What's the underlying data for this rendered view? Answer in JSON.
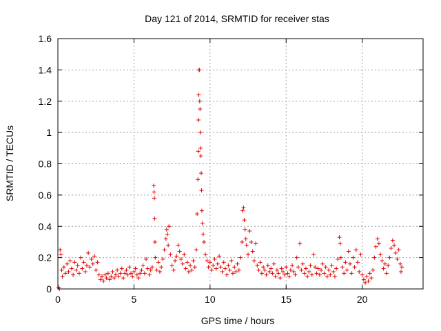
{
  "chart_data": {
    "type": "scatter",
    "title": "Day 121 of 2014, SRMTID for receiver stas",
    "xlabel": "GPS time / hours",
    "ylabel": "SRMTID / TECUs",
    "xlim": [
      0,
      24
    ],
    "ylim": [
      0,
      1.6
    ],
    "xticks": [
      0,
      5,
      10,
      15,
      20
    ],
    "xtick_labels": [
      "0",
      "5",
      "10",
      "15",
      "20"
    ],
    "yticks": [
      0,
      0.2,
      0.4,
      0.6,
      0.8,
      1.0,
      1.2,
      1.4,
      1.6
    ],
    "ytick_labels": [
      "0",
      "0.2",
      "0.4",
      "0.6",
      "0.8",
      "1",
      "1.2",
      "1.4",
      "1.6"
    ],
    "grid": true,
    "marker": "+",
    "color": "#e00000",
    "series": [
      {
        "name": "stas",
        "points": [
          [
            0.05,
            0.01
          ],
          [
            0.1,
            0.0
          ],
          [
            0.15,
            0.25
          ],
          [
            0.2,
            0.22
          ],
          [
            0.25,
            0.12
          ],
          [
            0.3,
            0.08
          ],
          [
            0.4,
            0.14
          ],
          [
            0.5,
            0.1
          ],
          [
            0.6,
            0.16
          ],
          [
            0.7,
            0.11
          ],
          [
            0.8,
            0.18
          ],
          [
            0.9,
            0.13
          ],
          [
            1.0,
            0.09
          ],
          [
            1.1,
            0.17
          ],
          [
            1.2,
            0.12
          ],
          [
            1.3,
            0.15
          ],
          [
            1.4,
            0.1
          ],
          [
            1.5,
            0.2
          ],
          [
            1.6,
            0.13
          ],
          [
            1.7,
            0.17
          ],
          [
            1.8,
            0.11
          ],
          [
            1.9,
            0.15
          ],
          [
            2.0,
            0.23
          ],
          [
            2.1,
            0.14
          ],
          [
            2.2,
            0.19
          ],
          [
            2.3,
            0.16
          ],
          [
            2.4,
            0.21
          ],
          [
            2.5,
            0.12
          ],
          [
            2.6,
            0.17
          ],
          [
            2.7,
            0.09
          ],
          [
            2.8,
            0.06
          ],
          [
            2.9,
            0.08
          ],
          [
            3.0,
            0.05
          ],
          [
            3.1,
            0.09
          ],
          [
            3.2,
            0.07
          ],
          [
            3.3,
            0.1
          ],
          [
            3.4,
            0.06
          ],
          [
            3.5,
            0.08
          ],
          [
            3.6,
            0.11
          ],
          [
            3.7,
            0.07
          ],
          [
            3.8,
            0.09
          ],
          [
            3.9,
            0.12
          ],
          [
            4.0,
            0.08
          ],
          [
            4.1,
            0.1
          ],
          [
            4.2,
            0.13
          ],
          [
            4.3,
            0.07
          ],
          [
            4.4,
            0.1
          ],
          [
            4.5,
            0.12
          ],
          [
            4.6,
            0.09
          ],
          [
            4.7,
            0.14
          ],
          [
            4.8,
            0.1
          ],
          [
            4.9,
            0.08
          ],
          [
            5.0,
            0.11
          ],
          [
            5.1,
            0.13
          ],
          [
            5.2,
            0.09
          ],
          [
            5.3,
            0.07
          ],
          [
            5.4,
            0.1
          ],
          [
            5.5,
            0.12
          ],
          [
            5.6,
            0.15
          ],
          [
            5.7,
            0.1
          ],
          [
            5.8,
            0.19
          ],
          [
            5.9,
            0.13
          ],
          [
            6.0,
            0.09
          ],
          [
            6.1,
            0.12
          ],
          [
            6.2,
            0.14
          ],
          [
            6.3,
            0.66
          ],
          [
            6.32,
            0.62
          ],
          [
            6.34,
            0.58
          ],
          [
            6.36,
            0.45
          ],
          [
            6.38,
            0.3
          ],
          [
            6.4,
            0.2
          ],
          [
            6.5,
            0.12
          ],
          [
            6.6,
            0.17
          ],
          [
            6.7,
            0.11
          ],
          [
            6.8,
            0.14
          ],
          [
            6.9,
            0.19
          ],
          [
            7.0,
            0.25
          ],
          [
            7.1,
            0.32
          ],
          [
            7.15,
            0.38
          ],
          [
            7.2,
            0.35
          ],
          [
            7.25,
            0.28
          ],
          [
            7.3,
            0.4
          ],
          [
            7.4,
            0.22
          ],
          [
            7.5,
            0.15
          ],
          [
            7.6,
            0.12
          ],
          [
            7.7,
            0.18
          ],
          [
            7.8,
            0.21
          ],
          [
            7.9,
            0.28
          ],
          [
            8.0,
            0.24
          ],
          [
            8.1,
            0.19
          ],
          [
            8.2,
            0.16
          ],
          [
            8.3,
            0.22
          ],
          [
            8.4,
            0.13
          ],
          [
            8.5,
            0.17
          ],
          [
            8.6,
            0.11
          ],
          [
            8.7,
            0.15
          ],
          [
            8.8,
            0.12
          ],
          [
            8.9,
            0.18
          ],
          [
            9.0,
            0.14
          ],
          [
            9.1,
            0.25
          ],
          [
            9.15,
            0.48
          ],
          [
            9.2,
            0.7
          ],
          [
            9.22,
            0.88
          ],
          [
            9.24,
            1.08
          ],
          [
            9.26,
            1.24
          ],
          [
            9.28,
            1.4
          ],
          [
            9.3,
            1.4
          ],
          [
            9.32,
            1.2
          ],
          [
            9.34,
            1.15
          ],
          [
            9.36,
            1.0
          ],
          [
            9.38,
            0.9
          ],
          [
            9.4,
            0.85
          ],
          [
            9.42,
            0.74
          ],
          [
            9.44,
            0.63
          ],
          [
            9.46,
            0.5
          ],
          [
            9.5,
            0.42
          ],
          [
            9.55,
            0.35
          ],
          [
            9.6,
            0.3
          ],
          [
            9.7,
            0.22
          ],
          [
            9.8,
            0.18
          ],
          [
            9.9,
            0.14
          ],
          [
            10.0,
            0.17
          ],
          [
            10.1,
            0.12
          ],
          [
            10.2,
            0.15
          ],
          [
            10.3,
            0.19
          ],
          [
            10.4,
            0.13
          ],
          [
            10.5,
            0.16
          ],
          [
            10.6,
            0.21
          ],
          [
            10.7,
            0.14
          ],
          [
            10.8,
            0.11
          ],
          [
            10.9,
            0.17
          ],
          [
            11.0,
            0.13
          ],
          [
            11.1,
            0.09
          ],
          [
            11.2,
            0.15
          ],
          [
            11.3,
            0.12
          ],
          [
            11.4,
            0.18
          ],
          [
            11.5,
            0.1
          ],
          [
            11.6,
            0.14
          ],
          [
            11.7,
            0.11
          ],
          [
            11.8,
            0.16
          ],
          [
            11.9,
            0.12
          ],
          [
            12.0,
            0.2
          ],
          [
            12.1,
            0.3
          ],
          [
            12.15,
            0.5
          ],
          [
            12.2,
            0.52
          ],
          [
            12.25,
            0.44
          ],
          [
            12.3,
            0.38
          ],
          [
            12.35,
            0.32
          ],
          [
            12.4,
            0.28
          ],
          [
            12.5,
            0.22
          ],
          [
            12.6,
            0.37
          ],
          [
            12.7,
            0.3
          ],
          [
            12.8,
            0.24
          ],
          [
            12.9,
            0.18
          ],
          [
            13.0,
            0.29
          ],
          [
            13.1,
            0.15
          ],
          [
            13.2,
            0.12
          ],
          [
            13.3,
            0.17
          ],
          [
            13.4,
            0.1
          ],
          [
            13.5,
            0.14
          ],
          [
            13.6,
            0.12
          ],
          [
            13.7,
            0.09
          ],
          [
            13.8,
            0.15
          ],
          [
            13.9,
            0.11
          ],
          [
            14.0,
            0.13
          ],
          [
            14.1,
            0.1
          ],
          [
            14.2,
            0.16
          ],
          [
            14.3,
            0.08
          ],
          [
            14.4,
            0.12
          ],
          [
            14.5,
            0.1
          ],
          [
            14.6,
            0.07
          ],
          [
            14.7,
            0.13
          ],
          [
            14.8,
            0.11
          ],
          [
            14.9,
            0.09
          ],
          [
            15.0,
            0.14
          ],
          [
            15.1,
            0.1
          ],
          [
            15.2,
            0.08
          ],
          [
            15.3,
            0.12
          ],
          [
            15.4,
            0.15
          ],
          [
            15.5,
            0.11
          ],
          [
            15.6,
            0.09
          ],
          [
            15.7,
            0.2
          ],
          [
            15.8,
            0.14
          ],
          [
            15.9,
            0.29
          ],
          [
            16.0,
            0.12
          ],
          [
            16.1,
            0.16
          ],
          [
            16.2,
            0.1
          ],
          [
            16.3,
            0.13
          ],
          [
            16.4,
            0.08
          ],
          [
            16.5,
            0.11
          ],
          [
            16.6,
            0.15
          ],
          [
            16.7,
            0.09
          ],
          [
            16.8,
            0.22
          ],
          [
            16.9,
            0.14
          ],
          [
            17.0,
            0.1
          ],
          [
            17.1,
            0.13
          ],
          [
            17.2,
            0.09
          ],
          [
            17.3,
            0.12
          ],
          [
            17.4,
            0.16
          ],
          [
            17.5,
            0.1
          ],
          [
            17.6,
            0.14
          ],
          [
            17.7,
            0.08
          ],
          [
            17.8,
            0.12
          ],
          [
            17.9,
            0.09
          ],
          [
            18.0,
            0.15
          ],
          [
            18.1,
            0.11
          ],
          [
            18.2,
            0.08
          ],
          [
            18.3,
            0.13
          ],
          [
            18.4,
            0.19
          ],
          [
            18.5,
            0.33
          ],
          [
            18.55,
            0.29
          ],
          [
            18.6,
            0.2
          ],
          [
            18.7,
            0.14
          ],
          [
            18.8,
            0.1
          ],
          [
            18.9,
            0.17
          ],
          [
            19.0,
            0.12
          ],
          [
            19.1,
            0.24
          ],
          [
            19.2,
            0.16
          ],
          [
            19.3,
            0.1
          ],
          [
            19.4,
            0.2
          ],
          [
            19.5,
            0.14
          ],
          [
            19.6,
            0.25
          ],
          [
            19.7,
            0.17
          ],
          [
            19.8,
            0.11
          ],
          [
            19.9,
            0.22
          ],
          [
            20.0,
            0.09
          ],
          [
            20.1,
            0.06
          ],
          [
            20.2,
            0.04
          ],
          [
            20.3,
            0.08
          ],
          [
            20.4,
            0.05
          ],
          [
            20.5,
            0.1
          ],
          [
            20.6,
            0.07
          ],
          [
            20.7,
            0.12
          ],
          [
            20.8,
            0.2
          ],
          [
            20.9,
            0.27
          ],
          [
            21.0,
            0.32
          ],
          [
            21.1,
            0.29
          ],
          [
            21.2,
            0.22
          ],
          [
            21.3,
            0.18
          ],
          [
            21.4,
            0.13
          ],
          [
            21.5,
            0.16
          ],
          [
            21.6,
            0.1
          ],
          [
            21.7,
            0.15
          ],
          [
            21.8,
            0.2
          ],
          [
            21.9,
            0.26
          ],
          [
            22.0,
            0.31
          ],
          [
            22.1,
            0.28
          ],
          [
            22.2,
            0.23
          ],
          [
            22.3,
            0.19
          ],
          [
            22.4,
            0.25
          ],
          [
            22.5,
            0.16
          ],
          [
            22.55,
            0.11
          ],
          [
            22.6,
            0.14
          ]
        ]
      }
    ]
  }
}
